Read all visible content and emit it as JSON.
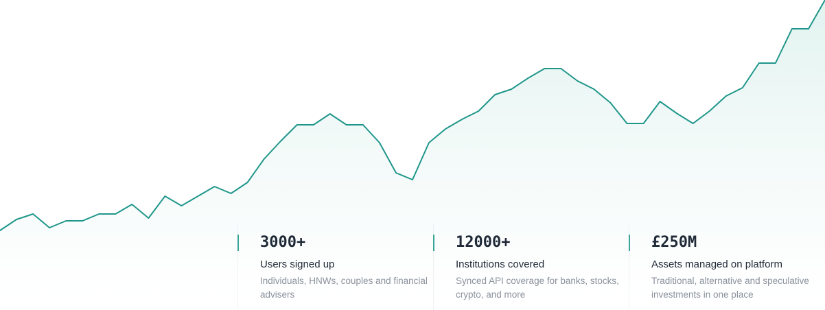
{
  "chart_data": {
    "type": "area",
    "series": [
      {
        "values": [
          8,
          24,
          32,
          12,
          22,
          22,
          32,
          32,
          46,
          26,
          58,
          44,
          58,
          72,
          62,
          78,
          112,
          138,
          162,
          162,
          178,
          162,
          162,
          136,
          92,
          82,
          136,
          156,
          170,
          182,
          206,
          214,
          230,
          244,
          244,
          226,
          214,
          194,
          164,
          164,
          196,
          179,
          164,
          182,
          204,
          216,
          252,
          252,
          302,
          302,
          344
        ]
      }
    ],
    "grid": false,
    "line_color": "#1f968a",
    "fill_color": "#d8efeb"
  },
  "stats": [
    {
      "value": "3000+",
      "label": "Users signed up",
      "description": "Individuals, HNWs, couples and financial advisers"
    },
    {
      "value": "12000+",
      "label": "Institutions covered",
      "description": "Synced API coverage for banks, stocks, crypto, and more"
    },
    {
      "value": "£250M",
      "label": "Assets managed on platform",
      "description": "Traditional, alternative and speculative investments in one place"
    }
  ],
  "colors": {
    "accent": "#3aa69a"
  }
}
